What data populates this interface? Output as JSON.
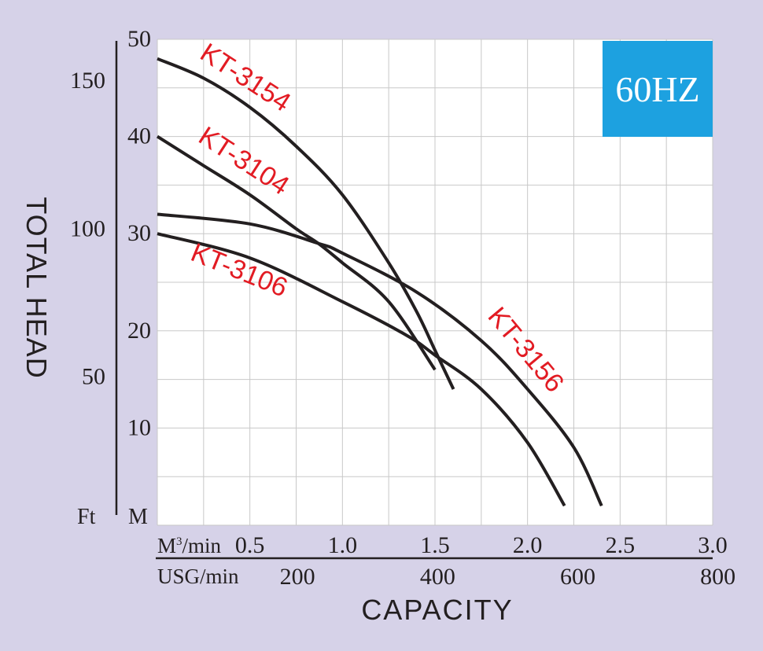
{
  "chart_data": {
    "type": "line",
    "title": "",
    "frequency_badge": "60HZ",
    "ylabel": "TOTAL HEAD",
    "xlabel": "CAPACITY",
    "y_unit_m": "M",
    "y_unit_ft": "Ft",
    "x_unit_m3": "M3/min",
    "x_unit_m3_base": "M",
    "x_unit_m3_sup": "3",
    "x_unit_m3_rest": "/min",
    "x_unit_usg": "USG/min",
    "xlim": [
      0,
      3.0
    ],
    "ylim": [
      0,
      50
    ],
    "grid": true,
    "y_ticks_m": [
      "10",
      "20",
      "30",
      "40",
      "50"
    ],
    "y_ticks_ft": [
      "50",
      "100",
      "150"
    ],
    "x_ticks_m3": [
      "0.5",
      "1.0",
      "1.5",
      "2.0",
      "2.5",
      "3.0"
    ],
    "x_ticks_usg": [
      "200",
      "400",
      "600",
      "800"
    ],
    "series": [
      {
        "name": "KT-3154",
        "x": [
          0,
          0.25,
          0.5,
          0.75,
          1.0,
          1.25,
          1.4,
          1.5,
          1.6
        ],
        "y": [
          48,
          46,
          43,
          39,
          34,
          27,
          22,
          18,
          14
        ]
      },
      {
        "name": "KT-3104",
        "x": [
          0,
          0.25,
          0.5,
          0.75,
          0.87,
          1.0,
          1.25,
          1.5
        ],
        "y": [
          40,
          37,
          34,
          30.5,
          29,
          27,
          23,
          16
        ]
      },
      {
        "name": "KT-3156",
        "x": [
          0,
          0.5,
          0.87,
          1.0,
          1.4,
          1.75,
          2.0,
          2.25,
          2.4
        ],
        "y": [
          32,
          31,
          29,
          28,
          24,
          19,
          14,
          8,
          2
        ]
      },
      {
        "name": "KT-3106",
        "x": [
          0,
          0.5,
          1.0,
          1.35,
          1.5,
          1.75,
          2.0,
          2.2
        ],
        "y": [
          30,
          27.5,
          23,
          19.5,
          17.5,
          14,
          8.5,
          2
        ]
      }
    ]
  }
}
